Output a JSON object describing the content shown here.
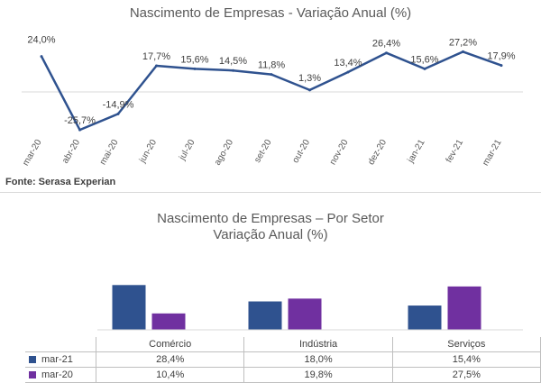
{
  "source": "Fonte: Serasa Experian",
  "chart_data": [
    {
      "type": "line",
      "title": "Nascimento de Empresas - Variação Anual (%)",
      "x": [
        "mar-20",
        "abr-20",
        "mai-20",
        "jun-20",
        "jul-20",
        "ago-20",
        "set-20",
        "out-20",
        "nov-20",
        "dez-20",
        "jan-21",
        "fev-21",
        "mar-21"
      ],
      "values": [
        24.0,
        -25.7,
        -14.9,
        17.7,
        15.6,
        14.5,
        11.8,
        1.3,
        13.4,
        26.4,
        15.6,
        27.2,
        17.9
      ],
      "data_labels": [
        "24,0%",
        "-25,7%",
        "-14,9%",
        "17,7%",
        "15,6%",
        "14,5%",
        "11,8%",
        "1,3%",
        "13,4%",
        "26,4%",
        "15,6%",
        "27,2%",
        "17,9%"
      ],
      "ylim": [
        -30,
        35
      ],
      "color": "#2f528f",
      "grid": false
    },
    {
      "type": "bar",
      "title": "Nascimento de Empresas – Por Setor",
      "subtitle": "Variação Anual (%)",
      "categories": [
        "Comércio",
        "Indústria",
        "Serviços"
      ],
      "series": [
        {
          "name": "mar-21",
          "values": [
            28.4,
            18.0,
            15.4
          ],
          "labels": [
            "28,4%",
            "18,0%",
            "15,4%"
          ],
          "color": "#2f528f"
        },
        {
          "name": "mar-20",
          "values": [
            10.4,
            19.8,
            27.5
          ],
          "labels": [
            "10,4%",
            "19,8%",
            "27,5%"
          ],
          "color": "#7030a0"
        }
      ],
      "ylim": [
        0,
        30
      ],
      "legend": "data-table"
    }
  ]
}
